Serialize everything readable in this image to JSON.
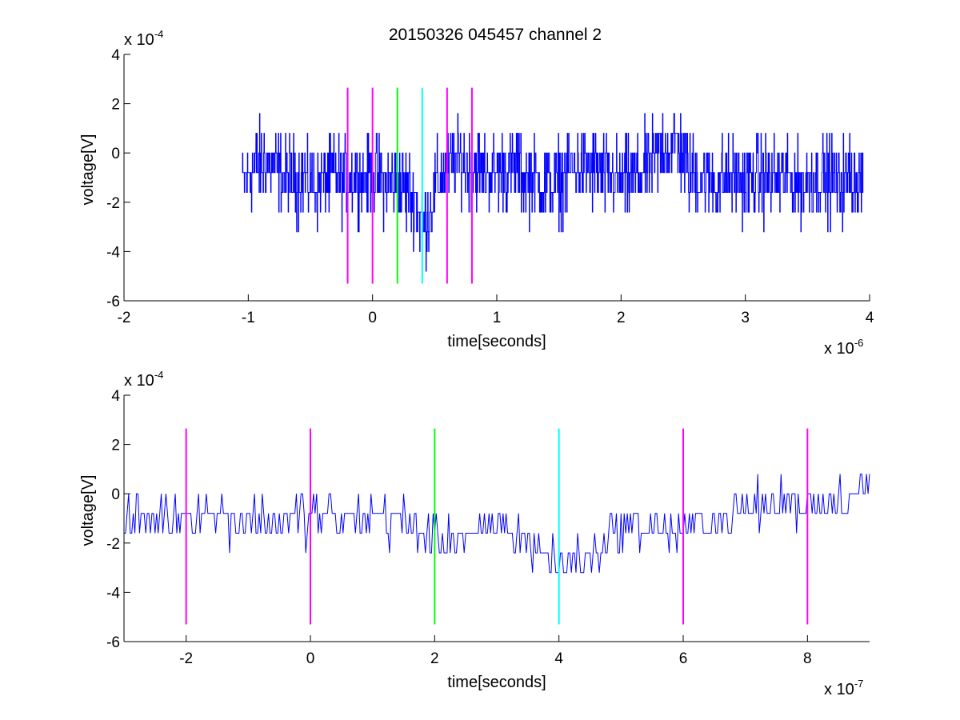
{
  "figure": {
    "title": "20150326 045457 channel 2"
  },
  "chart_data": [
    {
      "type": "line",
      "title": "20150326 045457 channel 2",
      "xlabel": "time[seconds]",
      "ylabel": "voltage[V]",
      "x_multiplier": {
        "base": "x 10",
        "exponent": "-6"
      },
      "y_multiplier": {
        "base": "x 10",
        "exponent": "-4"
      },
      "xlim": [
        -2,
        4
      ],
      "ylim": [
        -6,
        4
      ],
      "x_ticks": [
        "-2",
        "-1",
        "0",
        "1",
        "2",
        "3",
        "4"
      ],
      "y_ticks": [
        "-6",
        "-4",
        "-2",
        "0",
        "2",
        "4"
      ],
      "grid": false,
      "series": [
        {
          "color": "#0000ff",
          "x": [
            -1.05,
            -0.95,
            -0.85,
            -0.75,
            -0.65,
            -0.55,
            -0.45,
            -0.35,
            -0.25,
            -0.15,
            -0.05,
            0.05,
            0.15,
            0.25,
            0.35,
            0.38,
            0.42,
            0.45,
            0.5,
            0.55,
            0.65,
            0.75,
            0.85,
            0.95,
            1.05,
            1.15,
            1.25,
            1.35,
            1.45,
            1.55,
            1.65,
            1.75,
            1.85,
            1.95,
            2.05,
            2.15,
            2.25,
            2.35,
            2.45,
            2.55,
            2.65,
            2.75,
            2.85,
            2.95,
            3.05,
            3.15,
            3.25,
            3.35,
            3.45,
            3.55,
            3.65,
            3.75,
            3.85,
            3.95
          ],
          "y": [
            -1.2,
            -0.6,
            -0.4,
            -0.7,
            -1.0,
            -1.1,
            -1.3,
            -1.0,
            -1.1,
            -0.9,
            -1.0,
            -1.0,
            -1.1,
            -1.4,
            -1.9,
            -2.6,
            -2.8,
            -2.4,
            -1.6,
            -1.0,
            -0.3,
            -0.5,
            -0.6,
            -0.9,
            -0.7,
            -0.5,
            -1.0,
            -1.2,
            -1.3,
            -1.0,
            -0.5,
            -0.7,
            -0.8,
            -1.0,
            -1.1,
            -0.9,
            -0.5,
            0.3,
            0.4,
            -0.8,
            -1.0,
            -1.2,
            -1.1,
            -1.0,
            -1.2,
            -0.9,
            -1.1,
            -1.0,
            -1.3,
            -0.9,
            -1.1,
            -1.2,
            -0.9,
            -1.1
          ],
          "noise_amplitude": 1.6
        }
      ],
      "vlines": [
        {
          "x": -0.2,
          "color": "#ff00ff"
        },
        {
          "x": 0.0,
          "color": "#ff00ff"
        },
        {
          "x": 0.2,
          "color": "#00ff00"
        },
        {
          "x": 0.4,
          "color": "#00ffff"
        },
        {
          "x": 0.6,
          "color": "#ff00ff"
        },
        {
          "x": 0.8,
          "color": "#ff00ff"
        }
      ],
      "vline_range": [
        -5.3,
        2.65
      ]
    },
    {
      "type": "line",
      "xlabel": "time[seconds]",
      "ylabel": "voltage[V]",
      "x_multiplier": {
        "base": "x 10",
        "exponent": "-7"
      },
      "y_multiplier": {
        "base": "x 10",
        "exponent": "-4"
      },
      "xlim": [
        -3,
        9
      ],
      "ylim": [
        -6,
        4
      ],
      "x_ticks": [
        "-2",
        "0",
        "2",
        "4",
        "6",
        "8"
      ],
      "y_ticks": [
        "-6",
        "-4",
        "-2",
        "0",
        "2",
        "4"
      ],
      "grid": false,
      "series": [
        {
          "color": "#0000ff",
          "x": [
            -3.0,
            -2.5,
            -2.0,
            -1.5,
            -1.0,
            -0.5,
            0.0,
            0.5,
            1.0,
            1.5,
            2.0,
            2.5,
            3.0,
            3.5,
            3.8,
            4.0,
            4.2,
            4.5,
            5.0,
            5.5,
            6.0,
            6.5,
            7.0,
            7.5,
            8.0,
            8.5,
            9.0
          ],
          "y": [
            -1.0,
            -1.0,
            -0.8,
            -0.9,
            -1.0,
            -1.1,
            -0.9,
            -0.9,
            -1.0,
            -1.1,
            -1.9,
            -1.7,
            -1.4,
            -1.9,
            -2.5,
            -3.0,
            -2.8,
            -2.4,
            -1.4,
            -1.3,
            -1.6,
            -1.0,
            -0.6,
            -0.4,
            -0.3,
            -0.2,
            0.2
          ],
          "noise_amplitude": 0.9
        }
      ],
      "vlines": [
        {
          "x": -2,
          "color": "#ff00ff"
        },
        {
          "x": 0,
          "color": "#ff00ff"
        },
        {
          "x": 2,
          "color": "#00ff00"
        },
        {
          "x": 4,
          "color": "#00ffff"
        },
        {
          "x": 6,
          "color": "#ff00ff"
        },
        {
          "x": 8,
          "color": "#ff00ff"
        }
      ],
      "vline_range": [
        -5.3,
        2.65
      ]
    }
  ]
}
